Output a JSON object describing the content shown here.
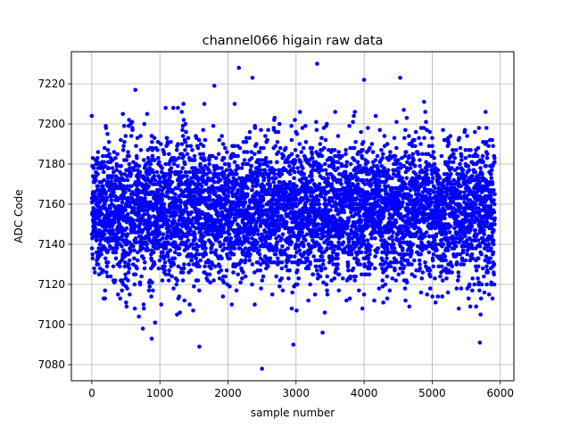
{
  "chart_data": {
    "type": "scatter",
    "title": "channel066 higain raw data",
    "xlabel": "sample number",
    "ylabel": "ADC Code",
    "xlim": [
      -300,
      6200
    ],
    "ylim": [
      7072,
      7236
    ],
    "xticks": [
      0,
      1000,
      2000,
      3000,
      4000,
      5000,
      6000
    ],
    "yticks": [
      7080,
      7100,
      7120,
      7140,
      7160,
      7180,
      7200,
      7220
    ],
    "grid": true,
    "legend": "none",
    "marker_color": "#0000ff",
    "n_points": 5920,
    "baseline_mean": 7157,
    "band_main": [
      7130,
      7185
    ],
    "notable_points": [
      {
        "x": 2160,
        "y": 7228
      },
      {
        "x": 2500,
        "y": 7078
      },
      {
        "x": 3310,
        "y": 7230
      },
      {
        "x": 3390,
        "y": 7096
      },
      {
        "x": 4530,
        "y": 7223
      },
      {
        "x": 4000,
        "y": 7222
      },
      {
        "x": 1580,
        "y": 7089
      },
      {
        "x": 2960,
        "y": 7090
      },
      {
        "x": 880,
        "y": 7093
      },
      {
        "x": 5700,
        "y": 7091
      },
      {
        "x": 640,
        "y": 7217
      },
      {
        "x": 1800,
        "y": 7219
      },
      {
        "x": 2360,
        "y": 7223
      },
      {
        "x": 750,
        "y": 7098
      },
      {
        "x": 930,
        "y": 7101
      }
    ]
  }
}
